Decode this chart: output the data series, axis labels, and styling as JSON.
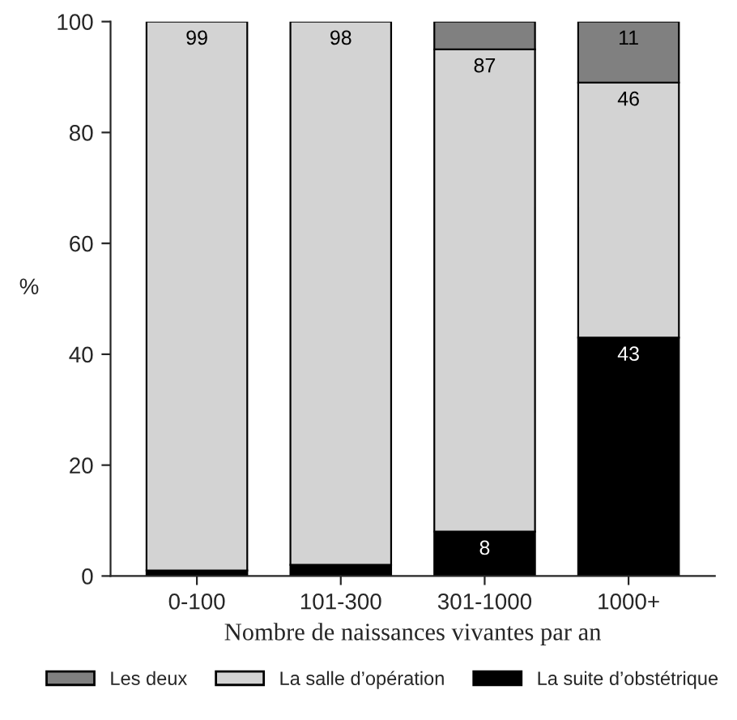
{
  "chart_data": {
    "type": "bar",
    "stacked": true,
    "xlabel": "Nombre de naissances vivantes par an",
    "ylabel": "%",
    "categories": [
      "0-100",
      "101-300",
      "301-1000",
      "1000+"
    ],
    "series": [
      {
        "name": "La suite d’obstétrique",
        "color": "#000000",
        "values": [
          1,
          2,
          8,
          43
        ],
        "value_labels": [
          null,
          null,
          "8",
          "43"
        ]
      },
      {
        "name": "La salle d’opération",
        "color": "#d3d3d3",
        "values": [
          99,
          98,
          87,
          46
        ],
        "value_labels": [
          "99",
          "98",
          "87",
          "46"
        ]
      },
      {
        "name": "Les deux",
        "color": "#808080",
        "values": [
          null,
          null,
          5,
          11
        ],
        "value_labels": [
          null,
          null,
          null,
          "11"
        ]
      }
    ],
    "ylim": [
      0,
      100
    ],
    "yticks": [
      0,
      20,
      40,
      60,
      80,
      100
    ],
    "grid": false,
    "legend": "bottom"
  }
}
